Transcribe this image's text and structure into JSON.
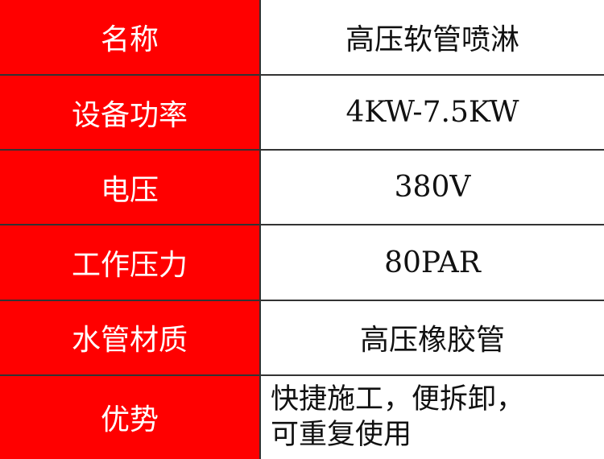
{
  "colors": {
    "label_bg": "#ff0000",
    "label_text": "#ffffff",
    "value_bg": "#ffffff"
  },
  "rows": [
    {
      "label": "名称",
      "value": "高压软管喷淋"
    },
    {
      "label": "设备功率",
      "value": "4KW-7.5KW"
    },
    {
      "label": "电压",
      "value": "380V"
    },
    {
      "label": "工作压力",
      "value": "80PAR"
    },
    {
      "label": "水管材质",
      "value": "高压橡胶管"
    },
    {
      "label": "优势",
      "value_lines": [
        "快捷施工，便拆卸，",
        "可重复使用"
      ]
    }
  ]
}
